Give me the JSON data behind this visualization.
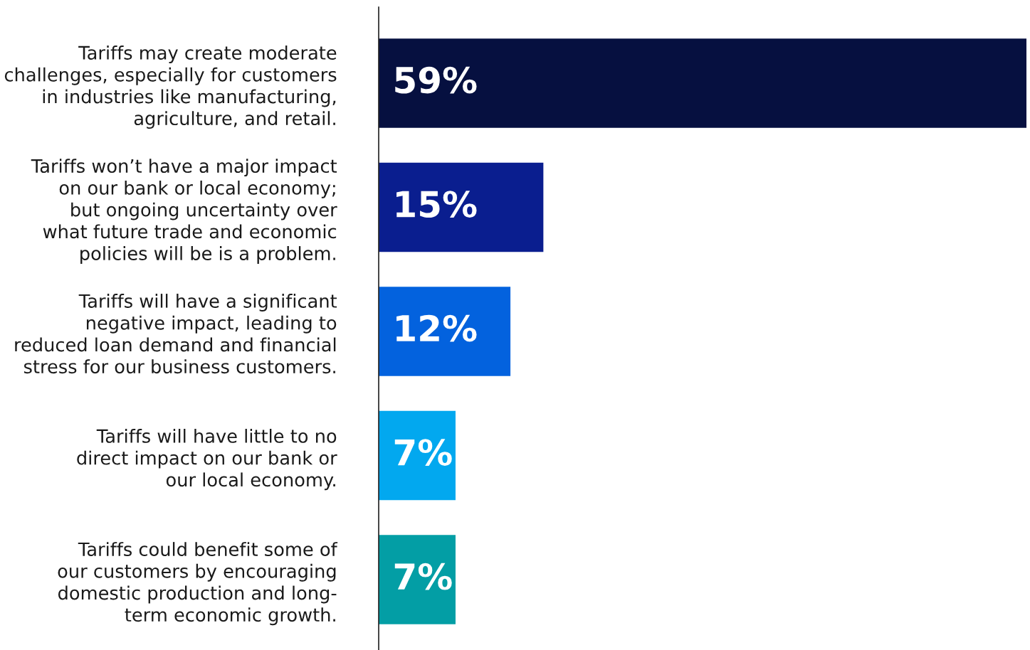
{
  "chart_data": {
    "type": "bar",
    "orientation": "horizontal",
    "categories": [
      "Tariffs may create moderate\nchallenges, especially for customers\nin industries like manufacturing,\nagriculture, and retail.",
      "Tariffs won’t have a major impact\non our bank or local economy;\nbut ongoing uncertainty over\nwhat future trade and economic\npolicies will be is a problem.",
      "Tariffs will have a significant\nnegative impact, leading to\nreduced loan demand and financial\nstress for our business customers.",
      "Tariffs will have little to no\ndirect impact on our bank or\nour local economy.",
      "Tariffs could benefit some of\nour customers by encouraging\ndomestic production and long-\nterm economic growth."
    ],
    "values": [
      59,
      15,
      12,
      7,
      7
    ],
    "colors": [
      "#061040",
      "#0a1e8f",
      "#0362de",
      "#02a8ef",
      "#039ea5"
    ],
    "value_labels": [
      "59%",
      "15%",
      "12%",
      "7%",
      "7%"
    ],
    "xlim": [
      0,
      59
    ],
    "tick_labels": "y"
  }
}
